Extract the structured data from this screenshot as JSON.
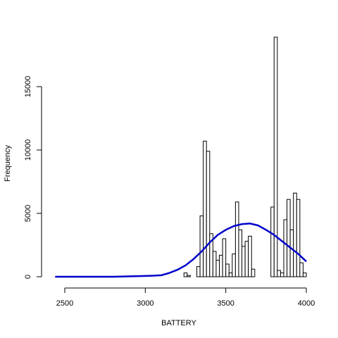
{
  "chart_data": {
    "type": "bar",
    "title": "",
    "xlabel": "BATTERY",
    "ylabel": "Frequency",
    "xlim": [
      2440,
      4000
    ],
    "ylim": [
      0,
      19000
    ],
    "x_ticks": [
      2500,
      3000,
      3500,
      4000
    ],
    "y_ticks": [
      0,
      5000,
      10000,
      15000
    ],
    "bin_width": 20,
    "bars": [
      {
        "x0": 3240,
        "x1": 3260,
        "value": 300
      },
      {
        "x0": 3260,
        "x1": 3280,
        "value": 100
      },
      {
        "x0": 3320,
        "x1": 3340,
        "value": 800
      },
      {
        "x0": 3340,
        "x1": 3360,
        "value": 4800
      },
      {
        "x0": 3360,
        "x1": 3380,
        "value": 10700
      },
      {
        "x0": 3380,
        "x1": 3400,
        "value": 9900
      },
      {
        "x0": 3400,
        "x1": 3420,
        "value": 3400
      },
      {
        "x0": 3420,
        "x1": 3440,
        "value": 2000
      },
      {
        "x0": 3440,
        "x1": 3460,
        "value": 1300
      },
      {
        "x0": 3460,
        "x1": 3480,
        "value": 1700
      },
      {
        "x0": 3480,
        "x1": 3500,
        "value": 3000
      },
      {
        "x0": 3500,
        "x1": 3520,
        "value": 1000
      },
      {
        "x0": 3520,
        "x1": 3540,
        "value": 300
      },
      {
        "x0": 3540,
        "x1": 3560,
        "value": 1800
      },
      {
        "x0": 3560,
        "x1": 3580,
        "value": 5900
      },
      {
        "x0": 3580,
        "x1": 3600,
        "value": 3700
      },
      {
        "x0": 3600,
        "x1": 3620,
        "value": 2400
      },
      {
        "x0": 3620,
        "x1": 3640,
        "value": 2800
      },
      {
        "x0": 3640,
        "x1": 3660,
        "value": 3200
      },
      {
        "x0": 3660,
        "x1": 3680,
        "value": 600
      },
      {
        "x0": 3780,
        "x1": 3800,
        "value": 5500
      },
      {
        "x0": 3800,
        "x1": 3820,
        "value": 18900
      },
      {
        "x0": 3820,
        "x1": 3840,
        "value": 500
      },
      {
        "x0": 3840,
        "x1": 3860,
        "value": 300
      },
      {
        "x0": 3860,
        "x1": 3880,
        "value": 4500
      },
      {
        "x0": 3880,
        "x1": 3900,
        "value": 6100
      },
      {
        "x0": 3900,
        "x1": 3920,
        "value": 3700
      },
      {
        "x0": 3920,
        "x1": 3940,
        "value": 6600
      },
      {
        "x0": 3940,
        "x1": 3960,
        "value": 6100
      },
      {
        "x0": 3960,
        "x1": 3980,
        "value": 1100
      },
      {
        "x0": 3980,
        "x1": 4000,
        "value": 300
      }
    ],
    "curve": {
      "type": "normal-density",
      "color": "#0000cc",
      "x": [
        2440,
        2600,
        2800,
        3000,
        3050,
        3100,
        3150,
        3200,
        3250,
        3300,
        3350,
        3400,
        3450,
        3500,
        3550,
        3600,
        3650,
        3700,
        3750,
        3800,
        3850,
        3900,
        3950,
        4000
      ],
      "y": [
        0,
        0,
        0,
        60,
        80,
        120,
        300,
        550,
        900,
        1400,
        2000,
        2700,
        3300,
        3700,
        4000,
        4150,
        4200,
        4050,
        3700,
        3300,
        2800,
        2300,
        1800,
        1200
      ]
    },
    "bar_fill": "#ffffff",
    "bar_stroke": "#000000",
    "grid": false,
    "legend": "none"
  }
}
